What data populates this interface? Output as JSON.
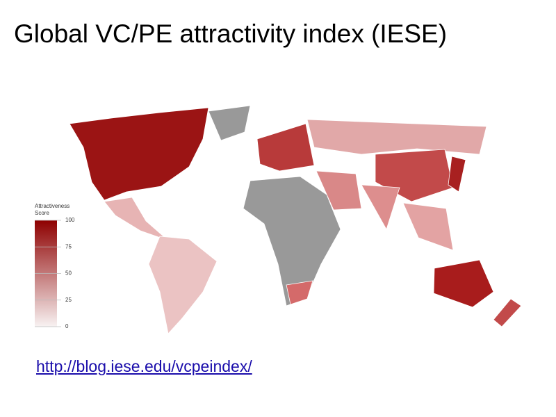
{
  "title": "Global VC/PE attractivity index (IESE)",
  "map": {
    "legend_title": [
      "Attractiveness",
      "Score"
    ],
    "scale_range": [
      0,
      100
    ],
    "scale_ticks": [
      0,
      25,
      50,
      75,
      100
    ],
    "scale_colors": [
      "#f8f2f2",
      "#8e0000"
    ]
  },
  "link": "http://blog.iese.edu/vcpeindex/"
}
